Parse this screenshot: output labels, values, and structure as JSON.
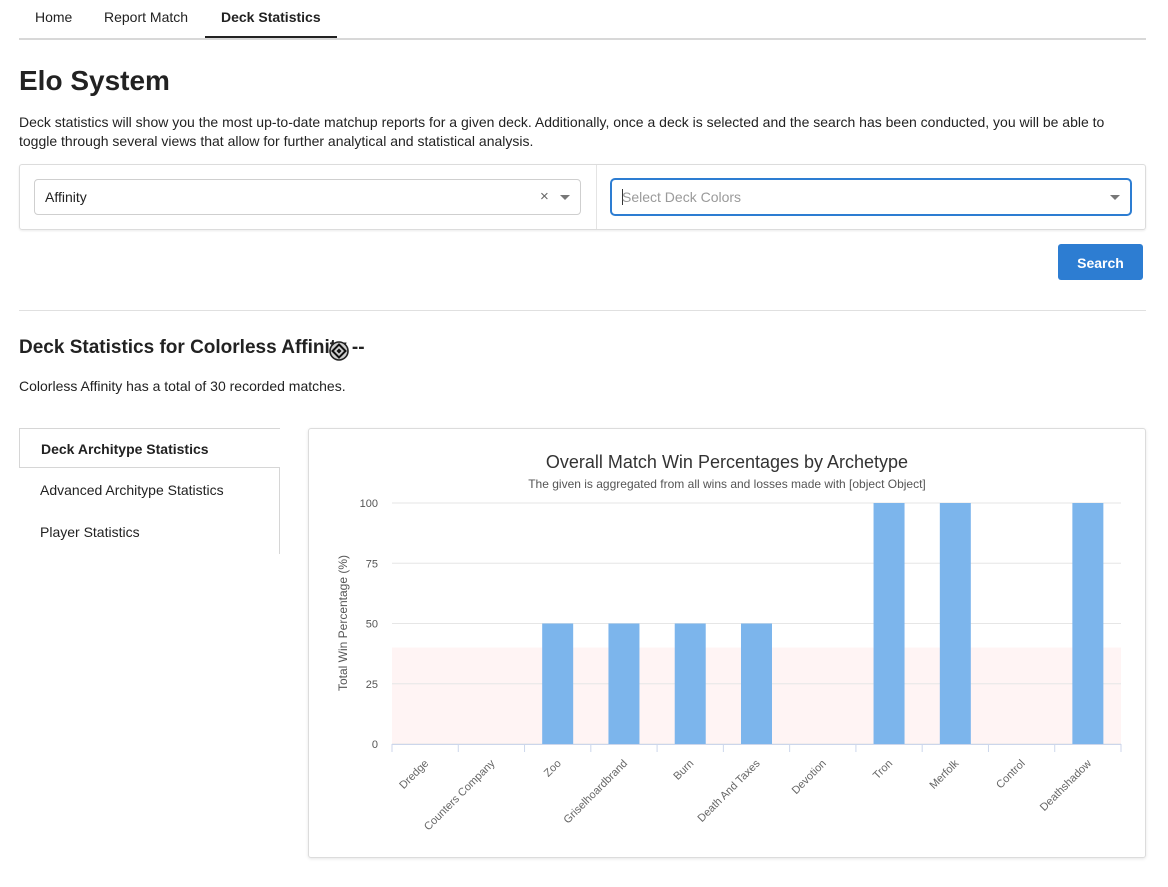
{
  "nav": {
    "tabs": [
      {
        "label": "Home",
        "active": false
      },
      {
        "label": "Report Match",
        "active": false
      },
      {
        "label": "Deck Statistics",
        "active": true
      }
    ]
  },
  "page": {
    "title": "Elo System",
    "intro": "Deck statistics will show you the most up-to-date matchup reports for a given deck. Additionally, once a deck is selected and the search has been conducted, you will be able to toggle through several views that allow for further analytical and statistical analysis."
  },
  "search": {
    "deck_value": "Affinity",
    "clear_glyph": "×",
    "colors_placeholder": "Select Deck Colors",
    "button_label": "Search"
  },
  "results": {
    "title": "Deck Statistics for Colorless Affinity --",
    "color_icon": "colorless-mana-icon",
    "summary": "Colorless Affinity has a total of 30 recorded matches."
  },
  "side_menu": {
    "items": [
      {
        "label": "Deck Architype Statistics",
        "active": true
      },
      {
        "label": "Advanced Architype Statistics",
        "active": false
      },
      {
        "label": "Player Statistics",
        "active": false
      }
    ]
  },
  "colors": {
    "accent": "#2d7dd2",
    "bar": "#7cb5ec",
    "band": "#fff4f4",
    "grid": "#e6e6e6"
  },
  "chart_data": {
    "type": "bar",
    "title": "Overall Match Win Percentages by Archetype",
    "subtitle": "The given is aggregated from all wins and losses made with [object Object]",
    "ylabel": "Total Win Percentage (%)",
    "xlabel": "",
    "ylim": [
      0,
      100
    ],
    "yticks": [
      0,
      25,
      50,
      75,
      100
    ],
    "plot_band": [
      0,
      40
    ],
    "grid": true,
    "categories": [
      "Dredge",
      "Counters Company",
      "Zoo",
      "Griselhoardbrand",
      "Burn",
      "Death And Taxes",
      "Devotion",
      "Tron",
      "Merfolk",
      "Control",
      "Deathshadow"
    ],
    "values": [
      0,
      0,
      50,
      50,
      50,
      50,
      0,
      100,
      100,
      0,
      100
    ]
  }
}
